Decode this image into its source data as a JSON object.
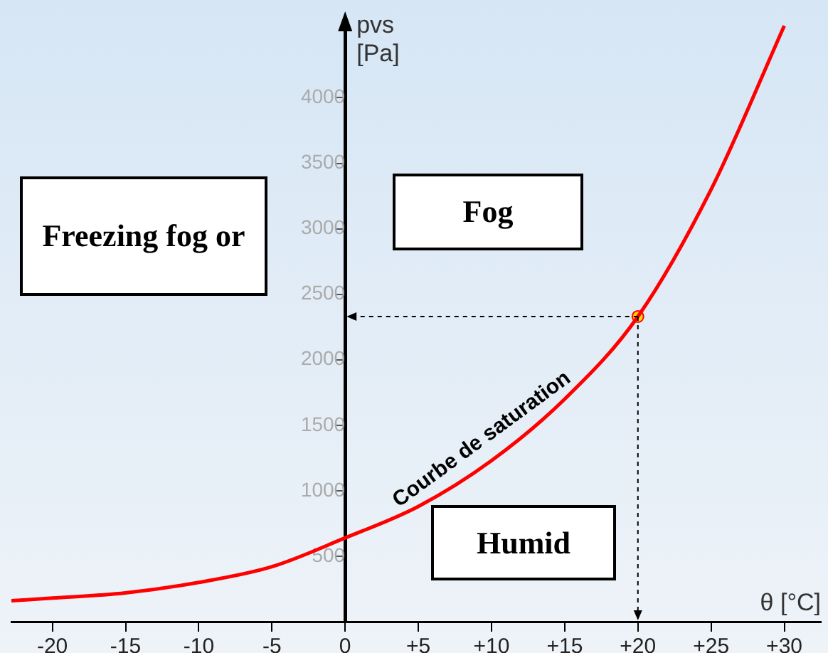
{
  "chart_data": {
    "type": "line",
    "xlabel": "θ [°C]",
    "ylabel": "pvs [Pa]",
    "xlim": [
      -22.8,
      32.5
    ],
    "ylim": [
      0,
      4590
    ],
    "xticks": [
      -20,
      -15,
      -10,
      -5,
      0,
      {
        "value": 5,
        "label": "+5"
      },
      {
        "value": 10,
        "label": "+10"
      },
      {
        "value": 15,
        "label": "+15"
      },
      {
        "value": 20,
        "label": "+20"
      },
      {
        "value": 25,
        "label": "+25"
      },
      {
        "value": 30,
        "label": "+30"
      }
    ],
    "yticks": [
      500,
      1000,
      1500,
      2000,
      2500,
      3000,
      3500,
      4000
    ],
    "grid": false,
    "legend": false,
    "series": [
      {
        "name": "Courbe de saturation",
        "color": "#ff0000",
        "marker": "none",
        "x": [
          -22.8,
          -20,
          -15,
          -10,
          -5,
          0,
          5,
          10,
          15,
          20,
          25,
          30
        ],
        "values": [
          160,
          180,
          220,
          300,
          420,
          640,
          880,
          1230,
          1700,
          2330,
          3300,
          4550
        ]
      },
      {
        "type": "scatter",
        "color": "#ffd700",
        "marker": "circle",
        "x": [
          20
        ],
        "values": [
          2330
        ]
      }
    ],
    "annotations": [
      "Freezing fog or",
      "Fog",
      "Humid"
    ]
  }
}
